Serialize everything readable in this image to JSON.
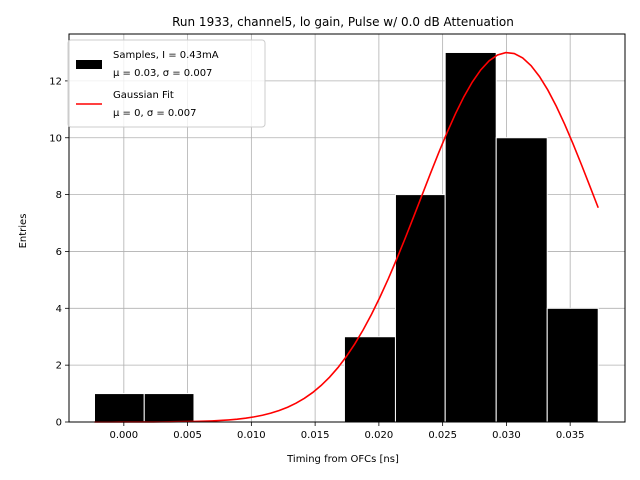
{
  "chart_data": {
    "type": "bar",
    "title": "Run 1933, channel5, lo gain, Pulse w/ 0.0 dB Attenuation",
    "xlabel": "Timing from OFCs [ns]",
    "ylabel": "Entries",
    "xlim": [
      -0.0043,
      0.0393
    ],
    "ylim": [
      0,
      13.65
    ],
    "grid": true,
    "legend_position": "top-left",
    "x_ticks": [
      0.0,
      0.005,
      0.01,
      0.015,
      0.02,
      0.025,
      0.03,
      0.035
    ],
    "x_tick_labels": [
      "0.000",
      "0.005",
      "0.010",
      "0.015",
      "0.020",
      "0.025",
      "0.030",
      "0.035"
    ],
    "y_ticks": [
      0,
      2,
      4,
      6,
      8,
      10,
      12
    ],
    "y_tick_labels": [
      "0",
      "2",
      "4",
      "6",
      "8",
      "10",
      "12"
    ],
    "histogram": {
      "name": "Samples, I = 0.43mA",
      "stats_label": "μ = 0.03, σ = 0.007",
      "color": "#000000",
      "bins": [
        {
          "x0": -0.0023,
          "x1": 0.0016,
          "count": 1
        },
        {
          "x0": 0.0016,
          "x1": 0.0055,
          "count": 1
        },
        {
          "x0": 0.0055,
          "x1": 0.0094,
          "count": 0
        },
        {
          "x0": 0.0094,
          "x1": 0.0134,
          "count": 0
        },
        {
          "x0": 0.0134,
          "x1": 0.0173,
          "count": 0
        },
        {
          "x0": 0.0173,
          "x1": 0.0213,
          "count": 3
        },
        {
          "x0": 0.0213,
          "x1": 0.0252,
          "count": 8
        },
        {
          "x0": 0.0252,
          "x1": 0.0292,
          "count": 13
        },
        {
          "x0": 0.0292,
          "x1": 0.0332,
          "count": 10
        },
        {
          "x0": 0.0332,
          "x1": 0.0372,
          "count": 4
        }
      ]
    },
    "fit": {
      "name": "Gaussian Fit",
      "stats_label": "μ = 0, σ = 0.007",
      "color": "#ff0000",
      "amplitude": 13.0,
      "mean": 0.0301,
      "sigma": 0.0068,
      "x_range": [
        -0.0023,
        0.0372
      ]
    }
  }
}
